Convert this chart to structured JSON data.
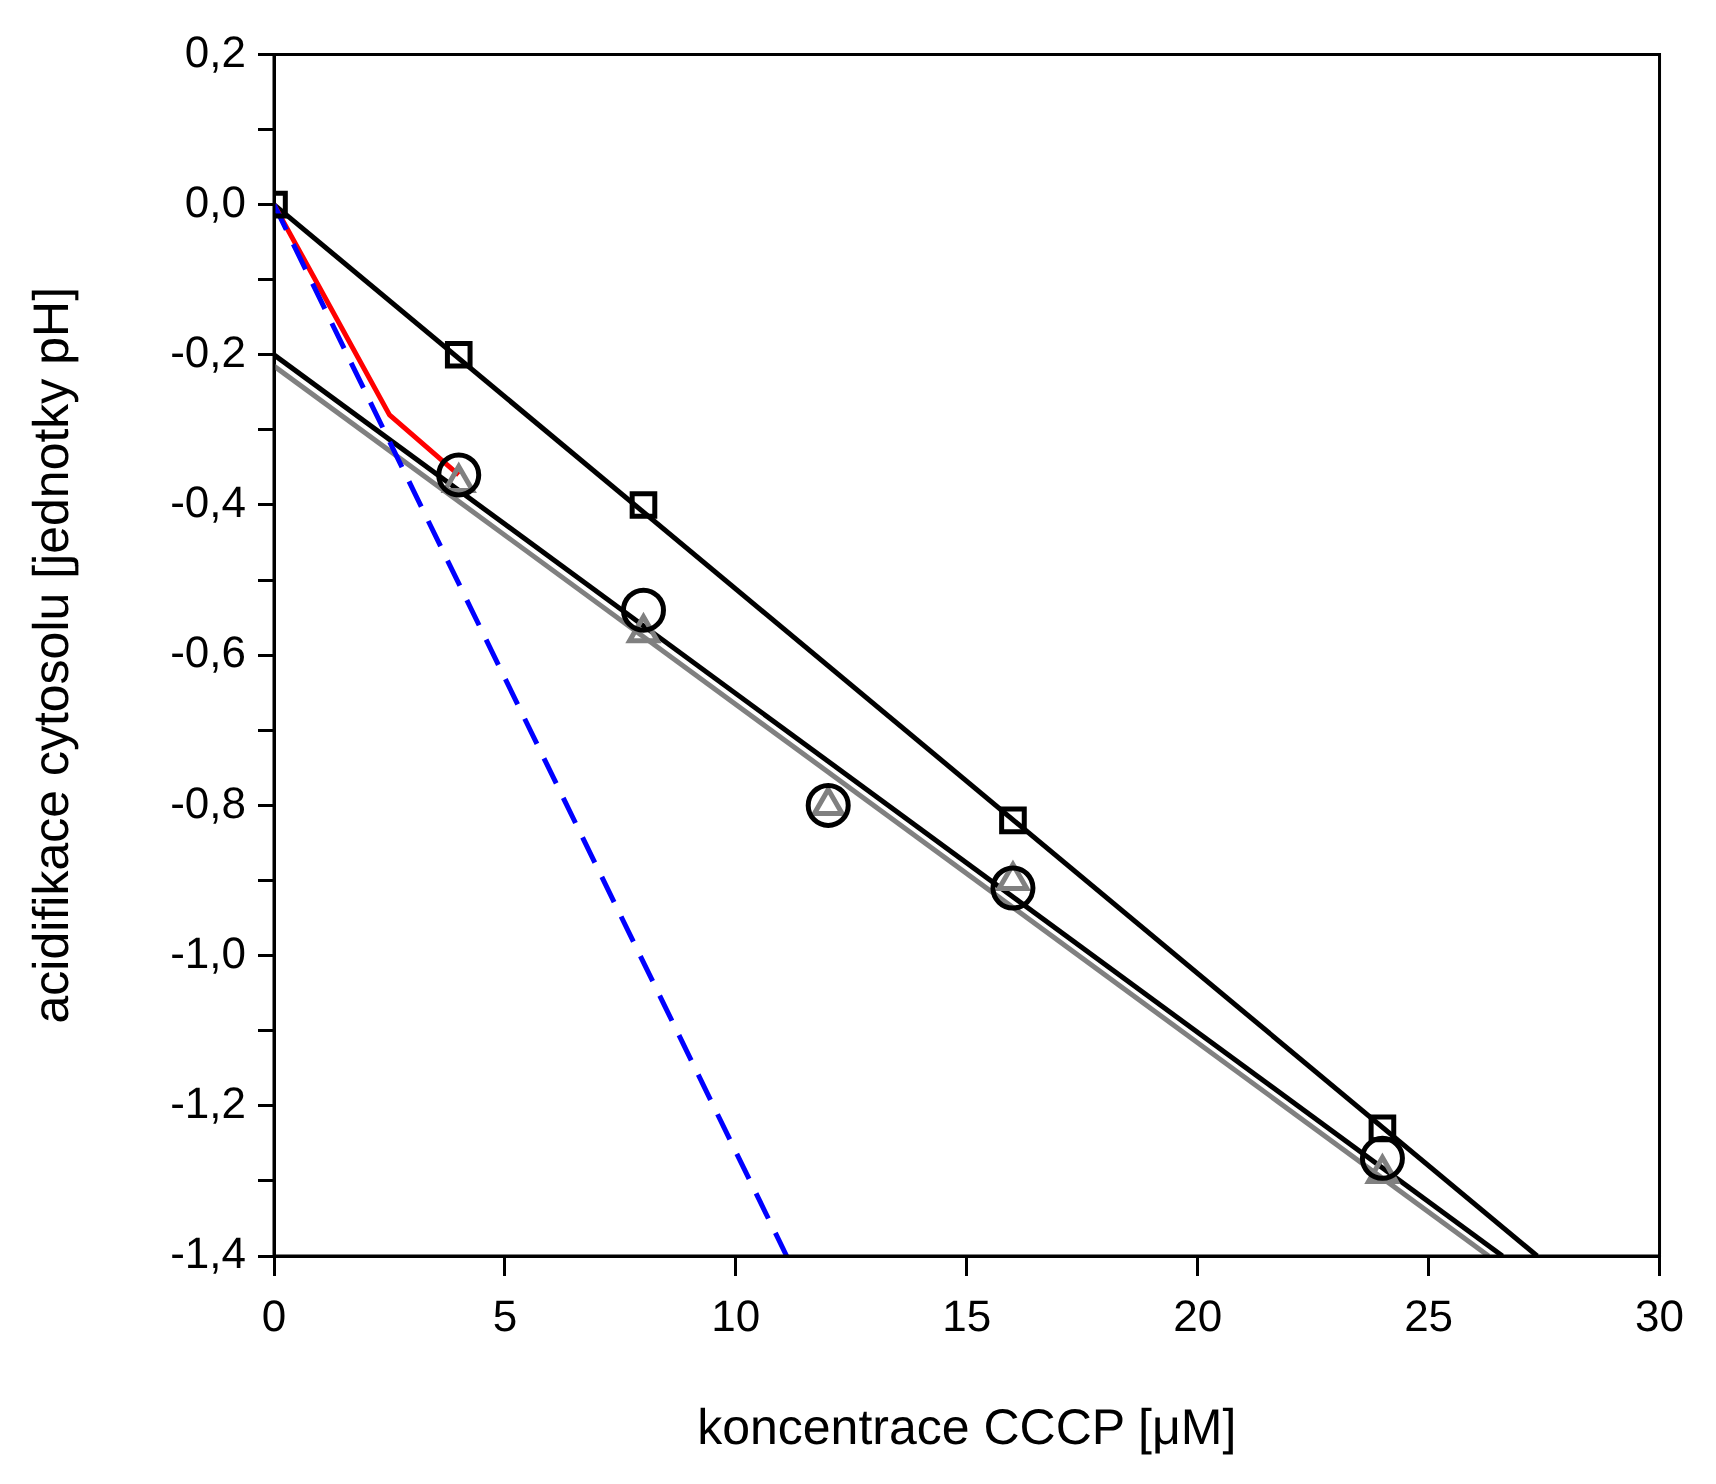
{
  "chart_data": {
    "type": "scatter",
    "xlabel": "koncentrace CCCP [μM]",
    "ylabel": "acidifikace cytosolu [jednotky pH]",
    "xlim": [
      0,
      30
    ],
    "xticks": [
      0,
      5,
      10,
      15,
      20,
      25,
      30
    ],
    "ylim": [
      -1.4,
      0.2
    ],
    "yticks": [
      {
        "value": 0.2,
        "label": "0,2"
      },
      {
        "value": 0.1,
        "label": null
      },
      {
        "value": 0,
        "label": "0,0"
      },
      {
        "value": -0.1,
        "label": null
      },
      {
        "value": -0.2,
        "label": "-0,2"
      },
      {
        "value": -0.3,
        "label": null
      },
      {
        "value": -0.4,
        "label": "-0,4"
      },
      {
        "value": -0.5,
        "label": null
      },
      {
        "value": -0.6,
        "label": "-0,6"
      },
      {
        "value": -0.7,
        "label": null
      },
      {
        "value": -0.8,
        "label": "-0,8"
      },
      {
        "value": -0.9,
        "label": null
      },
      {
        "value": -1.0,
        "label": "-1,0"
      },
      {
        "value": -1.1,
        "label": null
      },
      {
        "value": -1.2,
        "label": "-1,2"
      },
      {
        "value": -1.3,
        "label": null
      },
      {
        "value": -1.4,
        "label": "-1,4"
      }
    ],
    "grid": false,
    "legend": false,
    "series": [
      {
        "type": "line",
        "color": "#0000ff",
        "x": [
          0,
          11.1
        ],
        "values": [
          0,
          -1.4
        ],
        "marker": "none",
        "line_style": "dashed"
      },
      {
        "type": "line",
        "color": "#ff0000",
        "x": [
          0,
          2.5,
          4
        ],
        "values": [
          0,
          -0.28,
          -0.36
        ],
        "marker": "none",
        "line_style": "solid"
      },
      {
        "type": "line",
        "color": "#000000",
        "x": [
          0,
          27.35
        ],
        "values": [
          0,
          -1.4
        ],
        "marker": "none",
        "line_style": "solid"
      },
      {
        "type": "line",
        "color": "#808080",
        "x": [
          0,
          26.3
        ],
        "values": [
          -0.215,
          -1.4
        ],
        "marker": "none",
        "line_style": "solid"
      },
      {
        "type": "line",
        "color": "#000000",
        "x": [
          0,
          26.6
        ],
        "values": [
          -0.2,
          -1.4
        ],
        "marker": "none",
        "line_style": "solid"
      },
      {
        "type": "scatter",
        "color": "#000000",
        "x": [
          0,
          4,
          8,
          16,
          24
        ],
        "values": [
          0,
          -0.2,
          -0.4,
          -0.82,
          -1.23
        ],
        "marker": "square"
      },
      {
        "type": "scatter",
        "color": "#000000",
        "x": [
          4,
          8,
          12,
          16,
          24
        ],
        "values": [
          -0.36,
          -0.54,
          -0.8,
          -0.91,
          -1.27
        ],
        "marker": "circle"
      },
      {
        "type": "scatter",
        "color": "#808080",
        "x": [
          4,
          8,
          12,
          16,
          24
        ],
        "values": [
          -0.37,
          -0.57,
          -0.8,
          -0.9,
          -1.29
        ],
        "marker": "triangle"
      }
    ]
  }
}
